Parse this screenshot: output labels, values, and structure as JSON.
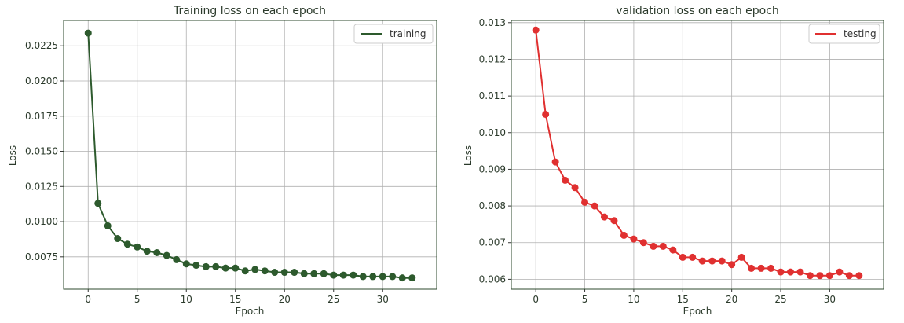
{
  "chart_data": [
    {
      "type": "line",
      "title": "Training loss on each epoch",
      "xlabel": "Epoch",
      "ylabel": "Loss",
      "xlim": [
        -2.5,
        35.5
      ],
      "ylim": [
        0.0052,
        0.0243
      ],
      "xticks": [
        0,
        5,
        10,
        15,
        20,
        25,
        30
      ],
      "yticks": [
        0.0075,
        0.01,
        0.0125,
        0.015,
        0.0175,
        0.02,
        0.0225
      ],
      "ytick_labels": [
        "0.0075",
        "0.0100",
        "0.0125",
        "0.0150",
        "0.0175",
        "0.0200",
        "0.0225"
      ],
      "grid": true,
      "legend_position": "top-right",
      "series": [
        {
          "name": "training",
          "color": "#2d5a2d",
          "x": [
            0,
            1,
            2,
            3,
            4,
            5,
            6,
            7,
            8,
            9,
            10,
            11,
            12,
            13,
            14,
            15,
            16,
            17,
            18,
            19,
            20,
            21,
            22,
            23,
            24,
            25,
            26,
            27,
            28,
            29,
            30,
            31,
            32,
            33
          ],
          "values": [
            0.0234,
            0.0113,
            0.0097,
            0.0088,
            0.0084,
            0.0082,
            0.0079,
            0.0078,
            0.0076,
            0.0073,
            0.007,
            0.0069,
            0.0068,
            0.0068,
            0.0067,
            0.0067,
            0.0065,
            0.0066,
            0.0065,
            0.0064,
            0.0064,
            0.0064,
            0.0063,
            0.0063,
            0.0063,
            0.0062,
            0.0062,
            0.0062,
            0.0061,
            0.0061,
            0.0061,
            0.0061,
            0.006,
            0.006
          ]
        }
      ]
    },
    {
      "type": "line",
      "title": "validation loss on each epoch",
      "xlabel": "Epoch",
      "ylabel": "Loss",
      "xlim": [
        -2.5,
        35.5
      ],
      "ylim": [
        0.00573,
        0.01306
      ],
      "xticks": [
        0,
        5,
        10,
        15,
        20,
        25,
        30
      ],
      "yticks": [
        0.006,
        0.007,
        0.008,
        0.009,
        0.01,
        0.011,
        0.012,
        0.013
      ],
      "ytick_labels": [
        "0.006",
        "0.007",
        "0.008",
        "0.009",
        "0.010",
        "0.011",
        "0.012",
        "0.013"
      ],
      "grid": true,
      "legend_position": "top-right",
      "series": [
        {
          "name": "testing",
          "color": "#e03030",
          "x": [
            0,
            1,
            2,
            3,
            4,
            5,
            6,
            7,
            8,
            9,
            10,
            11,
            12,
            13,
            14,
            15,
            16,
            17,
            18,
            19,
            20,
            21,
            22,
            23,
            24,
            25,
            26,
            27,
            28,
            29,
            30,
            31,
            32,
            33
          ],
          "values": [
            0.0128,
            0.0105,
            0.0092,
            0.0087,
            0.0085,
            0.0081,
            0.008,
            0.0077,
            0.0076,
            0.0072,
            0.0071,
            0.007,
            0.0069,
            0.0069,
            0.0068,
            0.0066,
            0.0066,
            0.0065,
            0.0065,
            0.0065,
            0.0064,
            0.0066,
            0.0063,
            0.0063,
            0.0063,
            0.0062,
            0.0062,
            0.0062,
            0.0061,
            0.0061,
            0.0061,
            0.0062,
            0.0061,
            0.0061
          ]
        }
      ]
    }
  ]
}
